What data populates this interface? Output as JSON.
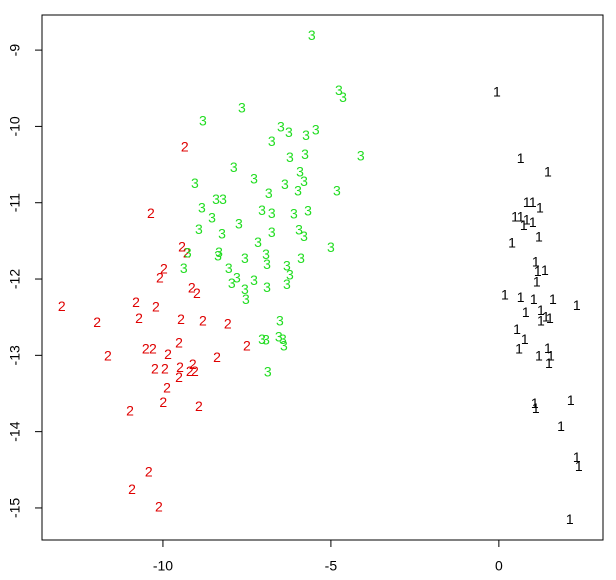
{
  "chart_data": {
    "type": "scatter",
    "xlim": [
      -13.6,
      3.1
    ],
    "ylim": [
      -15.42,
      -8.54
    ],
    "xticks": [
      -10,
      -5,
      0
    ],
    "yticks": [
      -9,
      -10,
      -11,
      -12,
      -13,
      -14,
      -15
    ],
    "series": [
      {
        "label": "1",
        "color": "#000000",
        "x": [
          -0.06,
          0.65,
          1.46,
          0.83,
          1.01,
          1.22,
          0.48,
          0.65,
          0.83,
          1.01,
          0.74,
          1.19,
          0.39,
          1.1,
          1.16,
          1.37,
          1.13,
          0.18,
          0.65,
          1.04,
          1.61,
          2.32,
          1.25,
          1.4,
          1.25,
          1.52,
          0.8,
          0.54,
          0.77,
          0.6,
          1.46,
          1.19,
          1.55,
          1.49,
          2.14,
          1.07,
          1.1,
          1.85,
          2.32,
          2.38,
          2.11
        ],
        "y": [
          -9.56,
          -10.43,
          -10.61,
          -11.01,
          -11.01,
          -11.08,
          -11.2,
          -11.2,
          -11.24,
          -11.27,
          -11.31,
          -11.46,
          -11.54,
          -11.79,
          -11.91,
          -11.9,
          -12.05,
          -12.22,
          -12.25,
          -12.28,
          -12.28,
          -12.36,
          -12.42,
          -12.51,
          -12.56,
          -12.53,
          -12.45,
          -12.67,
          -12.8,
          -12.93,
          -12.92,
          -13.02,
          -13.02,
          -13.12,
          -13.6,
          -13.64,
          -13.71,
          -13.94,
          -14.35,
          -14.47,
          -15.16
        ]
      },
      {
        "label": "2",
        "color": "#df0000",
        "x": [
          -9.35,
          -10.36,
          -9.43,
          -9.29,
          -9.97,
          -10.09,
          -13.01,
          -11.96,
          -10.8,
          -10.21,
          -10.71,
          -9.14,
          -8.99,
          -9.46,
          -8.81,
          -8.07,
          -11.64,
          -10.51,
          -10.3,
          -9.85,
          -9.52,
          -7.5,
          -8.39,
          -10.24,
          -9.94,
          -9.49,
          -9.11,
          -9.2,
          -9.52,
          -9.05,
          -9.88,
          -10.98,
          -9.99,
          -8.93,
          -10.42,
          -10.92,
          -10.12
        ],
        "y": [
          -10.28,
          -11.15,
          -11.59,
          -11.67,
          -11.88,
          -12.0,
          -12.37,
          -12.58,
          -12.32,
          -12.38,
          -12.53,
          -12.13,
          -12.2,
          -12.54,
          -12.56,
          -12.6,
          -13.02,
          -12.93,
          -12.93,
          -13.0,
          -12.85,
          -12.89,
          -13.04,
          -13.19,
          -13.19,
          -13.17,
          -13.13,
          -13.22,
          -13.3,
          -13.22,
          -13.44,
          -13.74,
          -13.63,
          -13.68,
          -14.54,
          -14.77,
          -15.0
        ]
      },
      {
        "label": "3",
        "color": "#22dd22",
        "x": [
          -5.57,
          -4.76,
          -4.64,
          -7.65,
          -8.81,
          -6.49,
          -6.25,
          -5.74,
          -5.45,
          -6.76,
          -5.77,
          -6.22,
          -4.11,
          -7.89,
          -5.92,
          -7.29,
          -6.37,
          -5.8,
          -9.05,
          -6.85,
          -5.98,
          -4.82,
          -8.42,
          -8.21,
          -8.84,
          -7.05,
          -6.76,
          -6.1,
          -5.68,
          -8.54,
          -7.74,
          -8.93,
          -8.24,
          -6.76,
          -5.95,
          -5.8,
          -7.17,
          -5.0,
          -8.33,
          -6.93,
          -9.26,
          -5.89,
          -7.56,
          -8.36,
          -6.9,
          -6.31,
          -9.38,
          -8.04,
          -6.22,
          -7.8,
          -7.29,
          -7.95,
          -6.9,
          -7.56,
          -6.31,
          -7.53,
          -6.52,
          -6.55,
          -7.05,
          -6.93,
          -6.43,
          -6.4,
          -6.88
        ],
        "y": [
          -8.82,
          -9.54,
          -9.63,
          -9.77,
          -9.94,
          -10.02,
          -10.09,
          -10.13,
          -10.06,
          -10.21,
          -10.38,
          -10.42,
          -10.4,
          -10.55,
          -10.61,
          -10.7,
          -10.77,
          -10.73,
          -10.76,
          -10.89,
          -10.86,
          -10.86,
          -10.97,
          -10.97,
          -11.08,
          -11.11,
          -11.15,
          -11.16,
          -11.12,
          -11.21,
          -11.29,
          -11.36,
          -11.42,
          -11.4,
          -11.37,
          -11.45,
          -11.53,
          -11.6,
          -11.66,
          -11.69,
          -11.67,
          -11.74,
          -11.74,
          -11.71,
          -11.82,
          -11.84,
          -11.87,
          -11.87,
          -11.96,
          -12.0,
          -12.03,
          -12.07,
          -12.12,
          -12.15,
          -12.08,
          -12.28,
          -12.56,
          -12.77,
          -12.8,
          -12.81,
          -12.8,
          -12.89,
          -13.23
        ]
      }
    ]
  }
}
